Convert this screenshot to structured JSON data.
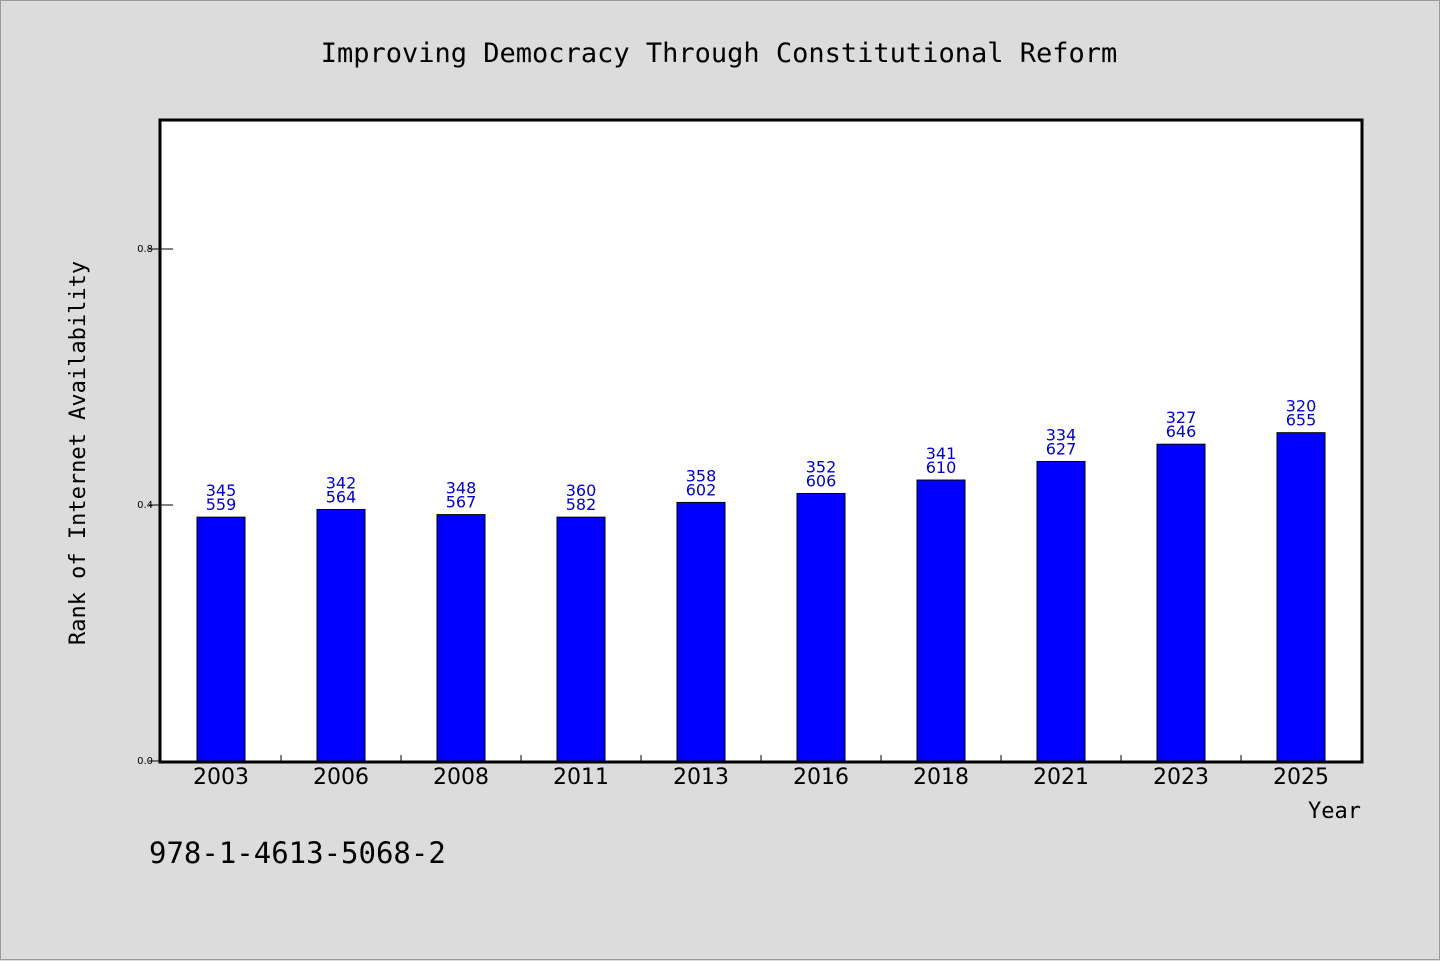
{
  "chart_data": {
    "type": "bar",
    "title": "Improving Democracy Through Constitutional Reform",
    "xlabel": "Year",
    "ylabel": "Rank of Internet Availability",
    "ylim": [
      0,
      1.0
    ],
    "yticks": [
      "0.0",
      "0.4",
      "0.8"
    ],
    "grid": false,
    "bar_color": "#0000ff",
    "label_color": "#0000cc",
    "categories": [
      "2003",
      "2006",
      "2008",
      "2011",
      "2013",
      "2016",
      "2018",
      "2021",
      "2023",
      "2025"
    ],
    "values": [
      0.381,
      0.393,
      0.385,
      0.381,
      0.404,
      0.418,
      0.439,
      0.468,
      0.495,
      0.513
    ],
    "labels_top": [
      "345",
      "342",
      "348",
      "360",
      "358",
      "352",
      "341",
      "334",
      "327",
      "320"
    ],
    "labels_bottom": [
      "559",
      "564",
      "567",
      "582",
      "602",
      "606",
      "610",
      "627",
      "646",
      "655"
    ]
  },
  "footer": {
    "isbn": "978-1-4613-5068-2"
  }
}
